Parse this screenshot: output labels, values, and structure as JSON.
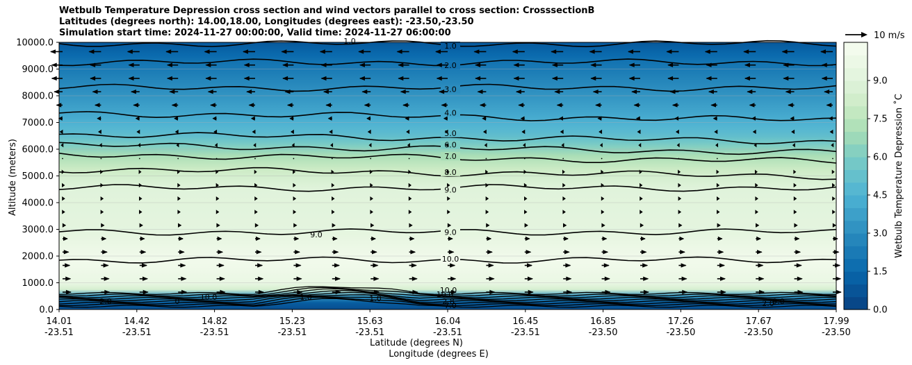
{
  "title_lines": [
    "Wetbulb Temperature Depression cross section and wind vectors parallel to cross section: CrosssectionB",
    "Latitudes (degrees north): 14.00,18.00, Longitudes (degrees east): -23.50,-23.50",
    "Simulation start time: 2024-11-27 00:00:00, Valid time: 2024-11-27 06:00:00"
  ],
  "chart_data": {
    "type": "contour-cross-section",
    "ylabel": "Altitude (meters)",
    "xlabel_lines": [
      "Latitude (degrees N)",
      "Longitude (degrees E)"
    ],
    "ylim": [
      0,
      10000
    ],
    "yticks": [
      "0.0",
      "1000.0",
      "2000.0",
      "3000.0",
      "4000.0",
      "5000.0",
      "6000.0",
      "7000.0",
      "8000.0",
      "9000.0",
      "10000.0"
    ],
    "xticks": [
      {
        "lat": "14.01",
        "lon": "-23.51"
      },
      {
        "lat": "14.42",
        "lon": "-23.51"
      },
      {
        "lat": "14.82",
        "lon": "-23.51"
      },
      {
        "lat": "15.23",
        "lon": "-23.51"
      },
      {
        "lat": "15.63",
        "lon": "-23.51"
      },
      {
        "lat": "16.04",
        "lon": "-23.51"
      },
      {
        "lat": "16.45",
        "lon": "-23.51"
      },
      {
        "lat": "16.85",
        "lon": "-23.50"
      },
      {
        "lat": "17.26",
        "lon": "-23.50"
      },
      {
        "lat": "17.67",
        "lon": "-23.50"
      },
      {
        "lat": "17.99",
        "lon": "-23.50"
      }
    ],
    "contour_levels": [
      {
        "label": "1.0",
        "alt": 9950
      },
      {
        "label": "2.0",
        "alt": 9250
      },
      {
        "label": "3.0",
        "alt": 8300
      },
      {
        "label": "4.0",
        "alt": 7350
      },
      {
        "label": "5.0",
        "alt": 6550
      },
      {
        "label": "6.0",
        "alt": 6150
      },
      {
        "label": "7.0",
        "alt": 5800
      },
      {
        "label": "8.0",
        "alt": 5250
      },
      {
        "label": "9.0",
        "alt": 4550
      },
      {
        "label": "9.0",
        "alt": 2900
      },
      {
        "label": "10.0",
        "alt": 1850
      }
    ],
    "extra_labels": [
      "1.0",
      "9.0",
      "10.0",
      "2.0",
      "1.0",
      "0",
      "10.0",
      "1.0",
      "10.0",
      "2.8",
      "2.0",
      "7.0",
      "9.0"
    ],
    "colorbar": {
      "label": "Wetbulb Temperature Depression ˚C",
      "ticks": [
        "0.0",
        "1.5",
        "3.0",
        "4.5",
        "6.0",
        "7.5",
        "9.0"
      ],
      "range": [
        0,
        10.5
      ]
    },
    "wind_key": {
      "label": "10 m/s",
      "speed": 10
    },
    "wind_profile": [
      {
        "alt": 9650,
        "u": -5.0
      },
      {
        "alt": 9150,
        "u": -4.5
      },
      {
        "alt": 8650,
        "u": -4.5
      },
      {
        "alt": 8150,
        "u": -3.5
      },
      {
        "alt": 7650,
        "u": -2.5
      },
      {
        "alt": 7150,
        "u": -1.5
      },
      {
        "alt": 6650,
        "u": -1.0
      },
      {
        "alt": 6150,
        "u": -0.5
      },
      {
        "alt": 5650,
        "u": 0.3
      },
      {
        "alt": 5150,
        "u": 0.5
      },
      {
        "alt": 4650,
        "u": 0.7
      },
      {
        "alt": 4150,
        "u": 0.8
      },
      {
        "alt": 3650,
        "u": 0.8
      },
      {
        "alt": 3150,
        "u": 1.2
      },
      {
        "alt": 2650,
        "u": 2.0
      },
      {
        "alt": 2150,
        "u": 2.5
      },
      {
        "alt": 1650,
        "u": 3.0
      },
      {
        "alt": 1150,
        "u": 3.3
      },
      {
        "alt": 650,
        "u": 3.5
      }
    ],
    "colors": {
      "low": "#08589e",
      "mid": "#4eb3d3",
      "high": "#a8ddb5",
      "top": "#f7fcf0"
    }
  }
}
